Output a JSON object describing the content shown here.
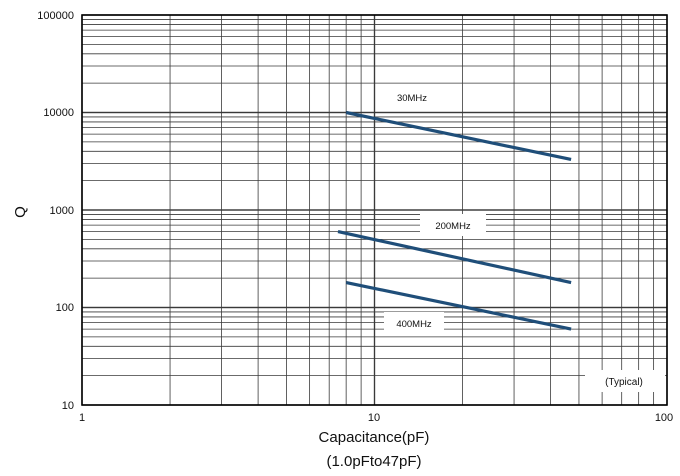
{
  "chart_data": {
    "type": "line",
    "title": "",
    "xlabel": "Capacitance(pF)",
    "xlabel_sub": "(1.0pFto47pF)",
    "ylabel": "Q",
    "x_scale": "log",
    "y_scale": "log",
    "xlim": [
      1,
      100
    ],
    "ylim": [
      10,
      100000
    ],
    "x_ticks": [
      "1",
      "10",
      "100"
    ],
    "y_ticks": [
      "10",
      "100",
      "1000",
      "10000",
      "100000"
    ],
    "grid": true,
    "note": "(Typical)",
    "series": [
      {
        "name": "30MHz",
        "x": [
          8,
          47
        ],
        "y": [
          10000,
          3300
        ]
      },
      {
        "name": "200MHz",
        "x": [
          7.5,
          47
        ],
        "y": [
          600,
          180
        ]
      },
      {
        "name": "400MHz",
        "x": [
          8,
          47
        ],
        "y": [
          180,
          60
        ]
      }
    ],
    "colors": {
      "line": "#1f4e79",
      "grid": "#3a3a3a",
      "axis": "#000000"
    }
  }
}
